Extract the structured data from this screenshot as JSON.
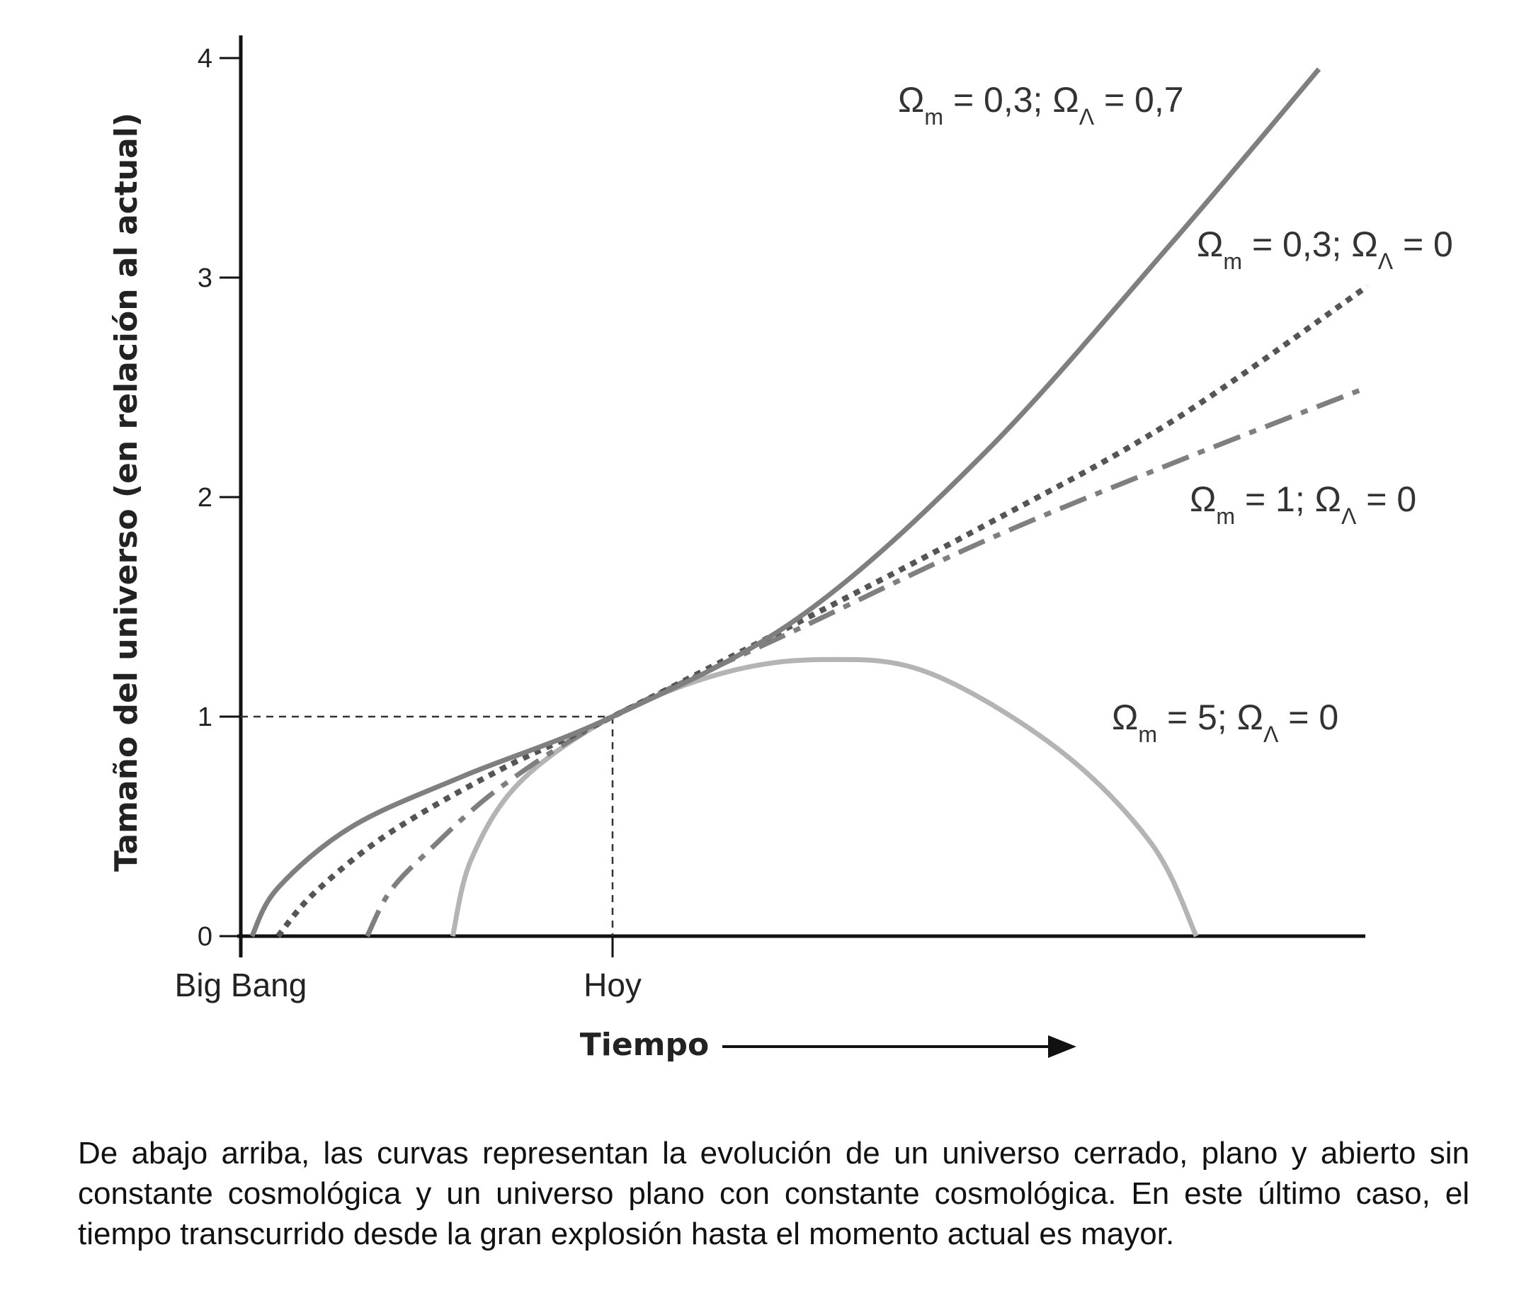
{
  "chart_data": {
    "type": "line",
    "ylabel": "Tamaño del universo (en relación al actual)",
    "xlabel": "Tiempo",
    "ylim": [
      0,
      4
    ],
    "yticks": [
      "0",
      "1",
      "2",
      "3",
      "4"
    ],
    "x_markers": [
      "Big Bang",
      "Hoy"
    ],
    "grid": false,
    "series": [
      {
        "name": "Ωm = 0,3; ΩΛ = 0,7",
        "label_parts": [
          [
            "Ω",
            ""
          ],
          [
            "m",
            "sub"
          ],
          [
            " = 0,3; Ω",
            ""
          ],
          [
            "Λ",
            "sub"
          ],
          [
            " = 0,7",
            ""
          ]
        ],
        "color": "#7f7f7f",
        "style": "solid",
        "x": [
          0.03,
          0.1,
          0.3,
          0.6,
          1.0,
          1.5,
          2.0,
          2.5,
          2.9
        ],
        "y": [
          0,
          0.22,
          0.5,
          0.73,
          1.0,
          1.45,
          2.2,
          3.15,
          3.95
        ]
      },
      {
        "name": "Ωm = 0,3; ΩΛ = 0",
        "label_parts": [
          [
            "Ω",
            ""
          ],
          [
            "m",
            "sub"
          ],
          [
            " = 0,3; Ω",
            ""
          ],
          [
            "Λ",
            "sub"
          ],
          [
            " = 0",
            ""
          ]
        ],
        "color": "#555555",
        "style": "dotted",
        "x": [
          0.1,
          0.2,
          0.4,
          0.7,
          1.0,
          1.5,
          2.0,
          2.5,
          3.03
        ],
        "y": [
          0,
          0.2,
          0.47,
          0.76,
          1.0,
          1.43,
          1.87,
          2.34,
          2.96
        ]
      },
      {
        "name": "Ωm = 1; ΩΛ = 0",
        "label_parts": [
          [
            "Ω",
            ""
          ],
          [
            "m",
            "sub"
          ],
          [
            " = 1; Ω",
            ""
          ],
          [
            "Λ",
            "sub"
          ],
          [
            " = 0",
            ""
          ]
        ],
        "color": "#7f7f7f",
        "style": "dashdot",
        "x": [
          0.34,
          0.4,
          0.5,
          0.7,
          1.0,
          1.5,
          2.0,
          2.5,
          3.03
        ],
        "y": [
          0,
          0.2,
          0.38,
          0.68,
          1.0,
          1.4,
          1.8,
          2.15,
          2.5
        ]
      },
      {
        "name": "Ωm = 5; ΩΛ = 0",
        "label_parts": [
          [
            "Ω",
            ""
          ],
          [
            "m",
            "sub"
          ],
          [
            " = 5; Ω",
            ""
          ],
          [
            "Λ",
            "sub"
          ],
          [
            " = 0",
            ""
          ]
        ],
        "color": "#b4b4b4",
        "style": "solid",
        "x": [
          0.57,
          0.62,
          0.75,
          1.0,
          1.3,
          1.57,
          1.85,
          2.2,
          2.45,
          2.57
        ],
        "y": [
          0,
          0.35,
          0.7,
          1.0,
          1.2,
          1.26,
          1.2,
          0.85,
          0.42,
          0
        ]
      }
    ]
  },
  "caption": "De abajo arriba, las curvas representan la evolución de un universo cerrado, plano y abierto sin constante cosmológica y un universo plano con constante cosmológica. En este último caso, el tiempo transcurrido desde la gran explosión hasta el momento actual es mayor."
}
